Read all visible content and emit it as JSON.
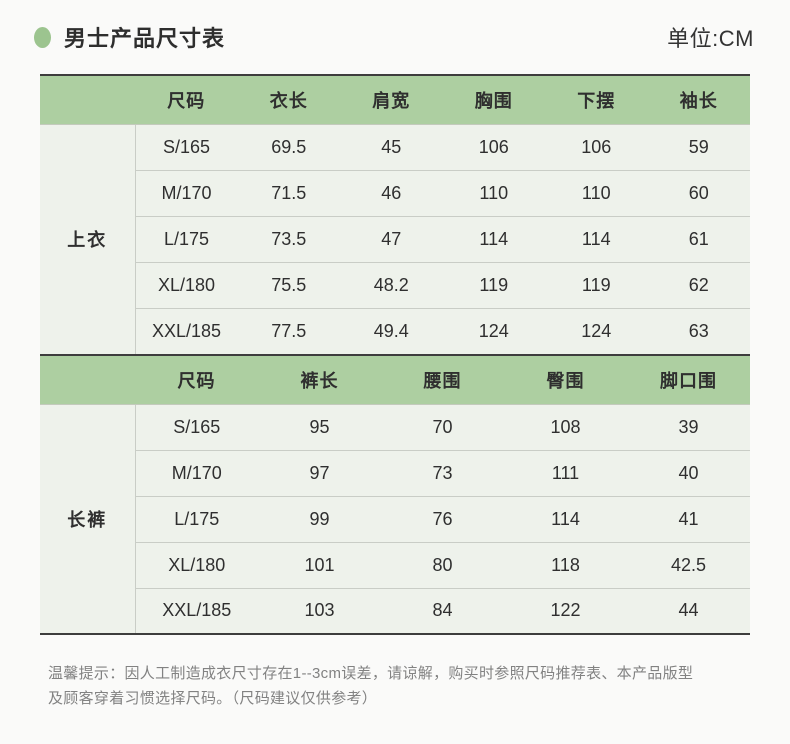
{
  "page": {
    "title": "男士产品尺寸表",
    "unit_label": "单位:CM",
    "note_lines": [
      "温馨提示：因人工制造成衣尺寸存在1--3cm误差，请谅解，购买时参照尺码推荐表、本产品版型",
      "及顾客穿着习惯选择尺码。（尺码建议仅供参考）"
    ]
  },
  "colors": {
    "accent_green": "#9cc48f",
    "table_header_green": "#adcfa1",
    "row_background": "#eef2eb",
    "dark_border": "#3d3d3d",
    "light_line": "#c9cdc6",
    "note_gray": "#828282"
  },
  "tables": [
    {
      "id": "tops",
      "category": "上衣",
      "columns": [
        "尺码",
        "衣长",
        "肩宽",
        "胸围",
        "下摆",
        "袖长"
      ],
      "rows": [
        [
          "S/165",
          "69.5",
          "45",
          "106",
          "106",
          "59"
        ],
        [
          "M/170",
          "71.5",
          "46",
          "110",
          "110",
          "60"
        ],
        [
          "L/175",
          "73.5",
          "47",
          "114",
          "114",
          "61"
        ],
        [
          "XL/180",
          "75.5",
          "48.2",
          "119",
          "119",
          "62"
        ],
        [
          "XXL/185",
          "77.5",
          "49.4",
          "124",
          "124",
          "63"
        ]
      ]
    },
    {
      "id": "pants",
      "category": "长裤",
      "columns": [
        "尺码",
        "裤长",
        "腰围",
        "臀围",
        "脚口围"
      ],
      "rows": [
        [
          "S/165",
          "95",
          "70",
          "108",
          "39"
        ],
        [
          "M/170",
          "97",
          "73",
          "111",
          "40"
        ],
        [
          "L/175",
          "99",
          "76",
          "114",
          "41"
        ],
        [
          "XL/180",
          "101",
          "80",
          "118",
          "42.5"
        ],
        [
          "XXL/185",
          "103",
          "84",
          "122",
          "44"
        ]
      ]
    }
  ]
}
